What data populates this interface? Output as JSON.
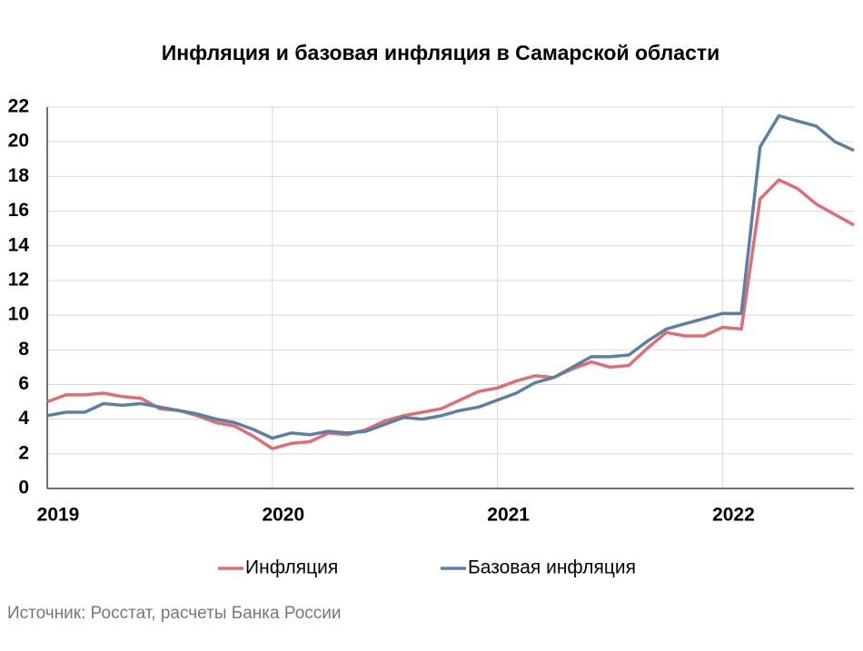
{
  "chart_data": {
    "type": "line",
    "title": "Инфляция и базовая инфляция в Самарской области",
    "source": "Источник: Росстат, расчеты Банка России",
    "categories": [
      "2019",
      null,
      null,
      null,
      null,
      null,
      null,
      null,
      null,
      null,
      null,
      null,
      "2020",
      null,
      null,
      null,
      null,
      null,
      null,
      null,
      null,
      null,
      null,
      null,
      "2021",
      null,
      null,
      null,
      null,
      null,
      null,
      null,
      null,
      null,
      null,
      null,
      "2022",
      null,
      null,
      null,
      null,
      null,
      null,
      null
    ],
    "series": [
      {
        "name": "Инфляция",
        "color": "#e06c75",
        "values": [
          5.0,
          5.4,
          5.4,
          5.5,
          5.3,
          5.2,
          4.6,
          4.5,
          4.2,
          3.8,
          3.6,
          3.0,
          2.3,
          2.6,
          2.7,
          3.2,
          3.1,
          3.4,
          3.9,
          4.2,
          4.4,
          4.6,
          5.1,
          5.6,
          5.8,
          6.2,
          6.5,
          6.4,
          6.9,
          7.3,
          7.0,
          7.1,
          8.1,
          9.0,
          8.8,
          8.8,
          9.3,
          9.2,
          16.7,
          17.8,
          17.3,
          16.4,
          15.8,
          15.2
        ]
      },
      {
        "name": "Базовая инфляция",
        "color": "#5b80a5",
        "values": [
          4.2,
          4.4,
          4.4,
          4.9,
          4.8,
          4.9,
          4.7,
          4.5,
          4.3,
          4.0,
          3.8,
          3.4,
          2.9,
          3.2,
          3.1,
          3.3,
          3.2,
          3.3,
          3.7,
          4.1,
          4.0,
          4.2,
          4.5,
          4.7,
          5.1,
          5.5,
          6.1,
          6.4,
          7.0,
          7.6,
          7.6,
          7.7,
          8.5,
          9.2,
          9.5,
          9.8,
          10.1,
          10.1,
          19.7,
          21.5,
          21.2,
          20.9,
          20.0,
          19.5
        ]
      }
    ],
    "ylim": [
      0,
      22
    ],
    "yticks": [
      0,
      2,
      4,
      6,
      8,
      10,
      12,
      14,
      16,
      18,
      20,
      22
    ],
    "grid": true
  }
}
